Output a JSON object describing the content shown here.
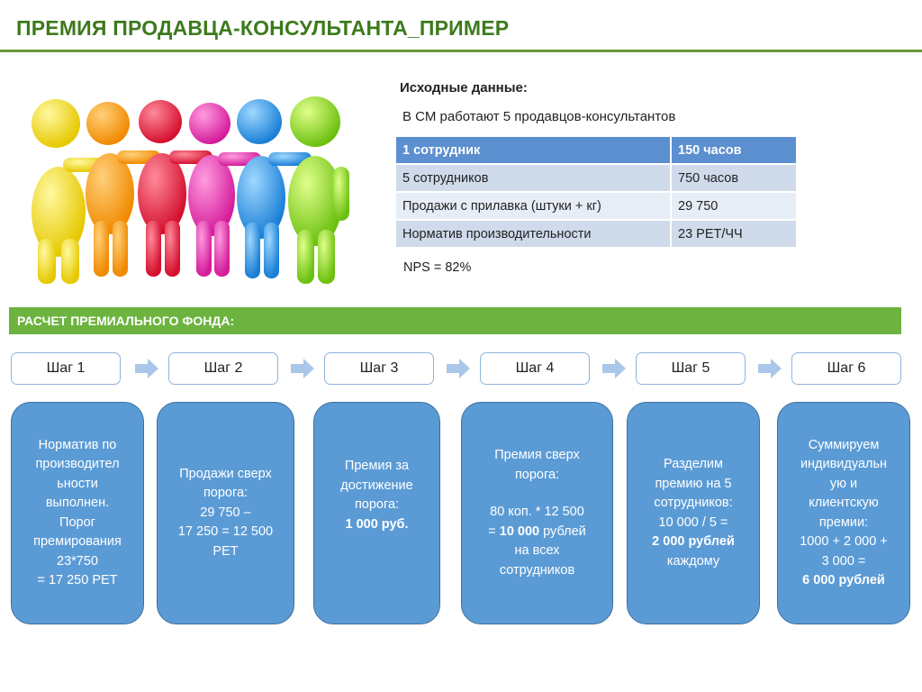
{
  "page": {
    "title": "ПРЕМИЯ ПРОДАВЦА-КОНСУЛЬТАНТА_ПРИМЕР"
  },
  "source": {
    "heading": "Исходные данные:",
    "intro": "В СМ работают 5 продавцов-консультантов",
    "rows": [
      {
        "label": "1 сотрудник",
        "value": "150 часов"
      },
      {
        "label": "5 сотрудников",
        "value": "750 часов"
      },
      {
        "label": "Продажи с прилавка (штуки + кг)",
        "value": "29 750"
      },
      {
        "label": "Норматив производительности",
        "value": "23 РЕТ/ЧЧ"
      }
    ],
    "nps": "NPS = 82%"
  },
  "section": {
    "title": "РАСЧЕТ ПРЕМИАЛЬНОГО ФОНДА:"
  },
  "steps": [
    "Шаг 1",
    "Шаг 2",
    "Шаг 3",
    "Шаг 4",
    "Шаг 5",
    "Шаг 6"
  ],
  "cards": {
    "c1": [
      "Норматив по",
      "производител",
      "ьности",
      "выполнен.",
      "Порог",
      "премирования",
      "23*750",
      "= 17 250 РЕТ"
    ],
    "c2": [
      "Продажи сверх",
      "порога:",
      "29 750 –",
      "17 250 = 12 500",
      "РЕТ"
    ],
    "c3": {
      "lines": [
        "Премия за",
        "достижение",
        "порога:"
      ],
      "bold": "1 000 руб."
    },
    "c4": {
      "top": [
        "Премия сверх",
        "порога:"
      ],
      "calc1": "80 коп.  * 12 500",
      "calc2_pre": "= ",
      "calc2_bold": "10 000",
      "calc2_post": " рублей",
      "tail": [
        "на всех",
        "сотрудников"
      ]
    },
    "c5": {
      "lines": [
        "Разделим",
        "премию на 5",
        "сотрудников:",
        "10 000 / 5 ="
      ],
      "bold": "2 000 рублей",
      "tail": "каждому"
    },
    "c6": {
      "lines": [
        "Суммируем",
        "индивидуальн",
        "ую и",
        "клиентскую",
        "премии:",
        "1000 + 2 000 +",
        "3 000 ="
      ],
      "bold": "6 000 рублей"
    }
  },
  "colors": {
    "title_green": "#3d7a1c",
    "section_green": "#6db33f",
    "card_blue": "#5b9bd5",
    "table_header_blue": "#5b8fcf"
  },
  "illustration": {
    "icon": "team-people-icon"
  }
}
